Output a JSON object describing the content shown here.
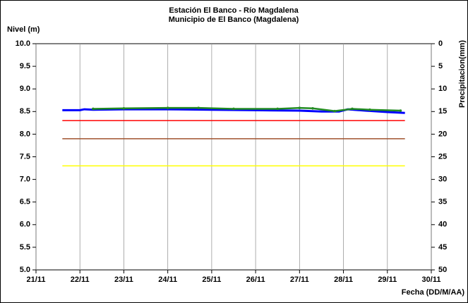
{
  "chart_data": {
    "type": "line",
    "title": "Estación El Banco - Río Magdalena",
    "subtitle": "Municipio de El Banco (Magdalena)",
    "y_label": "Nivel (m)",
    "y2_label": "Precipitacion(mm)",
    "x_label": "Fecha (DD/M/AA)",
    "xlim": [
      21,
      30
    ],
    "xticks": [
      {
        "value": 21,
        "label": "21/11"
      },
      {
        "value": 22,
        "label": "22/11"
      },
      {
        "value": 23,
        "label": "23/11"
      },
      {
        "value": 24,
        "label": "24/11"
      },
      {
        "value": 25,
        "label": "25/11"
      },
      {
        "value": 26,
        "label": "26/11"
      },
      {
        "value": 27,
        "label": "27/11"
      },
      {
        "value": 28,
        "label": "28/11"
      },
      {
        "value": 29,
        "label": "29/11"
      },
      {
        "value": 30,
        "label": "30/11"
      }
    ],
    "ylim": [
      5,
      10
    ],
    "yticks": [
      {
        "value": 5,
        "label": "5.0"
      },
      {
        "value": 5.5,
        "label": "5.5"
      },
      {
        "value": 6,
        "label": "6.0"
      },
      {
        "value": 6.5,
        "label": "6.5"
      },
      {
        "value": 7,
        "label": "7.0"
      },
      {
        "value": 7.5,
        "label": "7.5"
      },
      {
        "value": 8,
        "label": "8.0"
      },
      {
        "value": 8.5,
        "label": "8.5"
      },
      {
        "value": 9,
        "label": "9.0"
      },
      {
        "value": 9.5,
        "label": "9.5"
      },
      {
        "value": 10,
        "label": "10.0"
      }
    ],
    "y2lim": [
      50,
      0
    ],
    "y2ticks": [
      0,
      5,
      10,
      15,
      20,
      25,
      30,
      35,
      40,
      45,
      50
    ],
    "grid": "x",
    "series": [
      {
        "color": "#ffff00",
        "width": 1.5,
        "markers": false,
        "x": [
          21.6,
          29.4
        ],
        "values": [
          7.3,
          7.3
        ]
      },
      {
        "color": "#a0522d",
        "width": 1.5,
        "markers": false,
        "x": [
          21.6,
          29.4
        ],
        "values": [
          7.9,
          7.9
        ]
      },
      {
        "color": "#ff0000",
        "width": 1.5,
        "markers": false,
        "x": [
          21.6,
          29.4
        ],
        "values": [
          8.3,
          8.3
        ]
      },
      {
        "color": "#0000ff",
        "width": 3,
        "markers": false,
        "x": [
          21.6,
          22.0,
          22.1,
          22.3,
          23,
          24,
          25,
          26,
          27,
          27.5,
          27.9,
          28.1,
          28.5,
          29,
          29.4
        ],
        "values": [
          8.53,
          8.53,
          8.55,
          8.54,
          8.55,
          8.55,
          8.54,
          8.53,
          8.52,
          8.5,
          8.5,
          8.55,
          8.52,
          8.49,
          8.47
        ]
      },
      {
        "color": "#228b22",
        "width": 2.5,
        "markers": true,
        "x": [
          22.3,
          23,
          24,
          24.7,
          25.5,
          26.5,
          27,
          27.3,
          27.8,
          28.2,
          28.6,
          29.3
        ],
        "values": [
          8.56,
          8.57,
          8.58,
          8.58,
          8.56,
          8.56,
          8.58,
          8.57,
          8.51,
          8.56,
          8.54,
          8.52
        ]
      }
    ]
  }
}
